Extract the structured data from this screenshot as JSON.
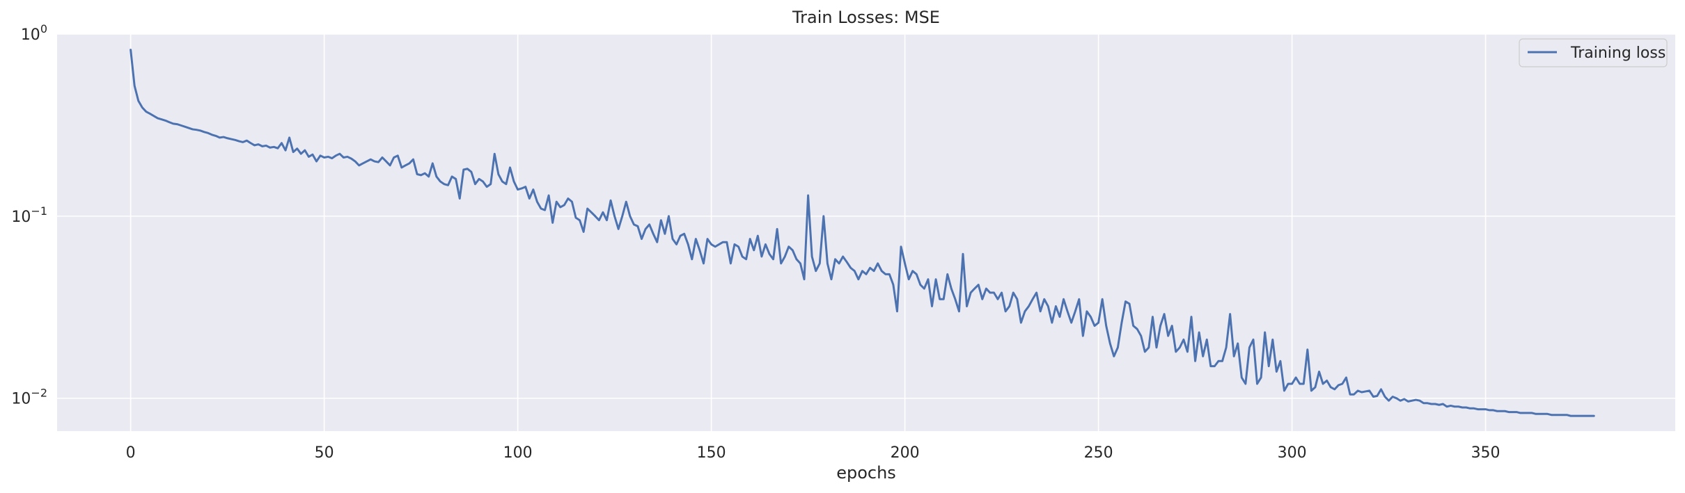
{
  "chart_data": {
    "type": "line",
    "title": "Train Losses:  MSE",
    "xlabel": "epochs",
    "ylabel": "",
    "yscale": "log",
    "xlim": [
      -19,
      399
    ],
    "ylim": [
      0.0066,
      1.0
    ],
    "xticks": [
      0,
      50,
      100,
      150,
      200,
      250,
      300,
      350
    ],
    "xtick_labels": [
      "0",
      "50",
      "100",
      "150",
      "200",
      "250",
      "300",
      "350"
    ],
    "yticks": [
      {
        "value": 1,
        "base": "10",
        "exp": "0"
      },
      {
        "value": 0.1,
        "base": "10",
        "exp": "−1"
      },
      {
        "value": 0.01,
        "base": "10",
        "exp": "−2"
      }
    ],
    "grid": true,
    "legend": {
      "position": "top-right",
      "entries": [
        "Training loss"
      ]
    },
    "background_color": "#eaeaf2",
    "grid_color": "#ffffff",
    "series": [
      {
        "name": "Training loss",
        "color": "#4c72b0",
        "x_start": 0,
        "x_step": 1,
        "values": [
          0.82,
          0.52,
          0.43,
          0.395,
          0.375,
          0.365,
          0.355,
          0.345,
          0.34,
          0.335,
          0.328,
          0.322,
          0.32,
          0.315,
          0.31,
          0.305,
          0.3,
          0.298,
          0.295,
          0.29,
          0.286,
          0.28,
          0.276,
          0.27,
          0.272,
          0.268,
          0.265,
          0.262,
          0.258,
          0.255,
          0.26,
          0.252,
          0.245,
          0.248,
          0.242,
          0.244,
          0.238,
          0.24,
          0.236,
          0.252,
          0.23,
          0.27,
          0.225,
          0.235,
          0.22,
          0.23,
          0.212,
          0.218,
          0.2,
          0.215,
          0.21,
          0.212,
          0.208,
          0.215,
          0.22,
          0.21,
          0.212,
          0.207,
          0.2,
          0.19,
          0.195,
          0.2,
          0.205,
          0.2,
          0.198,
          0.21,
          0.2,
          0.19,
          0.21,
          0.215,
          0.185,
          0.19,
          0.195,
          0.205,
          0.17,
          0.168,
          0.172,
          0.165,
          0.195,
          0.165,
          0.155,
          0.15,
          0.148,
          0.165,
          0.16,
          0.125,
          0.18,
          0.182,
          0.175,
          0.15,
          0.16,
          0.155,
          0.145,
          0.15,
          0.22,
          0.17,
          0.155,
          0.15,
          0.185,
          0.155,
          0.14,
          0.142,
          0.145,
          0.125,
          0.14,
          0.12,
          0.11,
          0.108,
          0.13,
          0.092,
          0.12,
          0.112,
          0.115,
          0.125,
          0.12,
          0.098,
          0.095,
          0.082,
          0.11,
          0.105,
          0.1,
          0.095,
          0.105,
          0.095,
          0.122,
          0.1,
          0.085,
          0.1,
          0.12,
          0.1,
          0.09,
          0.088,
          0.075,
          0.085,
          0.09,
          0.08,
          0.072,
          0.095,
          0.08,
          0.1,
          0.075,
          0.07,
          0.078,
          0.08,
          0.07,
          0.058,
          0.075,
          0.065,
          0.055,
          0.075,
          0.07,
          0.068,
          0.07,
          0.072,
          0.072,
          0.055,
          0.07,
          0.068,
          0.06,
          0.058,
          0.075,
          0.065,
          0.078,
          0.06,
          0.07,
          0.062,
          0.058,
          0.085,
          0.055,
          0.06,
          0.068,
          0.065,
          0.058,
          0.055,
          0.045,
          0.13,
          0.06,
          0.05,
          0.055,
          0.1,
          0.055,
          0.045,
          0.058,
          0.055,
          0.06,
          0.056,
          0.052,
          0.05,
          0.045,
          0.05,
          0.048,
          0.052,
          0.05,
          0.055,
          0.05,
          0.048,
          0.048,
          0.042,
          0.03,
          0.068,
          0.055,
          0.045,
          0.05,
          0.048,
          0.042,
          0.04,
          0.045,
          0.032,
          0.045,
          0.035,
          0.035,
          0.048,
          0.04,
          0.035,
          0.03,
          0.062,
          0.032,
          0.038,
          0.04,
          0.042,
          0.035,
          0.04,
          0.038,
          0.038,
          0.035,
          0.038,
          0.03,
          0.032,
          0.038,
          0.035,
          0.026,
          0.03,
          0.032,
          0.035,
          0.038,
          0.03,
          0.035,
          0.032,
          0.026,
          0.032,
          0.028,
          0.035,
          0.03,
          0.026,
          0.03,
          0.035,
          0.022,
          0.03,
          0.028,
          0.025,
          0.026,
          0.035,
          0.025,
          0.02,
          0.017,
          0.019,
          0.026,
          0.034,
          0.033,
          0.025,
          0.024,
          0.022,
          0.018,
          0.019,
          0.028,
          0.019,
          0.025,
          0.029,
          0.022,
          0.025,
          0.018,
          0.019,
          0.021,
          0.018,
          0.028,
          0.016,
          0.023,
          0.017,
          0.021,
          0.015,
          0.015,
          0.016,
          0.016,
          0.019,
          0.029,
          0.017,
          0.02,
          0.013,
          0.012,
          0.019,
          0.021,
          0.012,
          0.013,
          0.023,
          0.015,
          0.021,
          0.014,
          0.016,
          0.011,
          0.012,
          0.012,
          0.013,
          0.012,
          0.012,
          0.0185,
          0.011,
          0.0115,
          0.014,
          0.012,
          0.0125,
          0.0115,
          0.0112,
          0.0118,
          0.012,
          0.013,
          0.0105,
          0.0105,
          0.011,
          0.0108,
          0.0109,
          0.011,
          0.0102,
          0.0103,
          0.0112,
          0.0102,
          0.0097,
          0.0102,
          0.01,
          0.0097,
          0.0099,
          0.0096,
          0.0097,
          0.0098,
          0.0097,
          0.0094,
          0.0094,
          0.0093,
          0.0093,
          0.0092,
          0.0093,
          0.009,
          0.0091,
          0.009,
          0.009,
          0.0089,
          0.0089,
          0.0088,
          0.0088,
          0.0087,
          0.0087,
          0.0087,
          0.0086,
          0.0086,
          0.0085,
          0.0085,
          0.0085,
          0.0084,
          0.0084,
          0.0084,
          0.0083,
          0.0083,
          0.0083,
          0.0083,
          0.0082,
          0.0082,
          0.0082,
          0.0082,
          0.0081,
          0.0081,
          0.0081,
          0.0081,
          0.0081,
          0.008,
          0.008,
          0.008,
          0.008,
          0.008,
          0.008,
          0.008
        ]
      }
    ]
  }
}
